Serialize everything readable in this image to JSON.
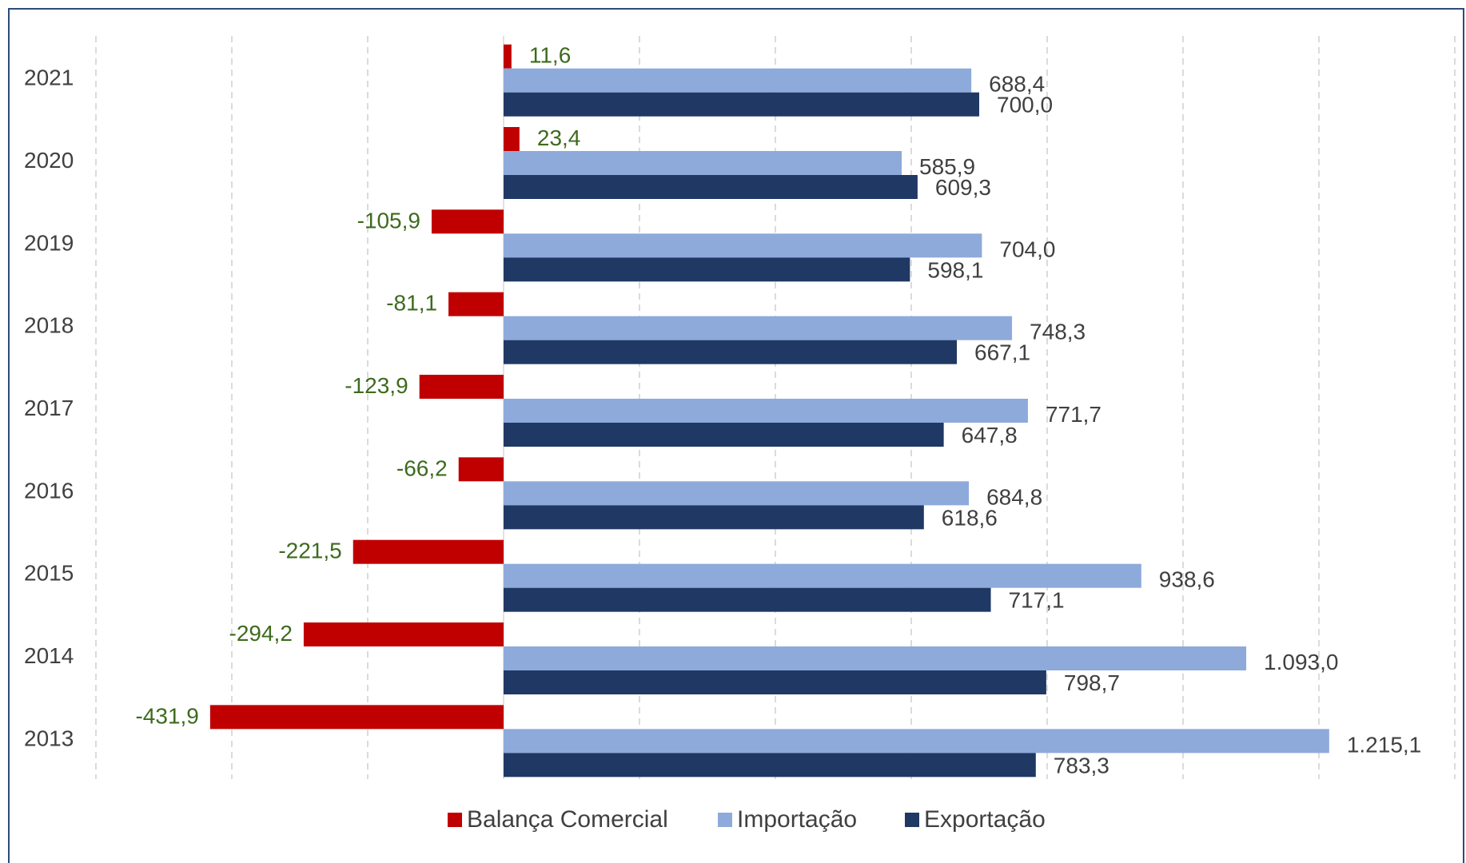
{
  "chart_data": {
    "type": "bar",
    "orientation": "horizontal",
    "categories": [
      "2021",
      "2020",
      "2019",
      "2018",
      "2017",
      "2016",
      "2015",
      "2014",
      "2013"
    ],
    "series": [
      {
        "name": "Balança Comercial",
        "color": "#c00000",
        "values": [
          11.6,
          23.4,
          -105.9,
          -81.1,
          -123.9,
          -66.2,
          -221.5,
          -294.2,
          -431.9
        ],
        "labels": [
          "11,6",
          "23,4",
          "-105,9",
          "-81,1",
          "-123,9",
          "-66,2",
          "-221,5",
          "-294,2",
          "-431,9"
        ]
      },
      {
        "name": "Importação",
        "color": "#8eaadb",
        "values": [
          688.4,
          585.9,
          704.0,
          748.3,
          771.7,
          684.8,
          938.6,
          1093.0,
          1215.1
        ],
        "labels": [
          "688,4",
          "585,9",
          "704,0",
          "748,3",
          "771,7",
          "684,8",
          "938,6",
          "1.093,0",
          "1.215,1"
        ]
      },
      {
        "name": "Exportação",
        "color": "#1f3864",
        "values": [
          700.0,
          609.3,
          598.1,
          667.1,
          647.8,
          618.6,
          717.1,
          798.7,
          783.3
        ],
        "labels": [
          "700,0",
          "609,3",
          "598,1",
          "667,1",
          "647,8",
          "618,6",
          "717,1",
          "798,7",
          "783,3"
        ]
      }
    ],
    "xlim": [
      -600,
      1400
    ],
    "grid": true,
    "legend_position": "bottom",
    "balance_label_color": "#3d6b1e"
  }
}
